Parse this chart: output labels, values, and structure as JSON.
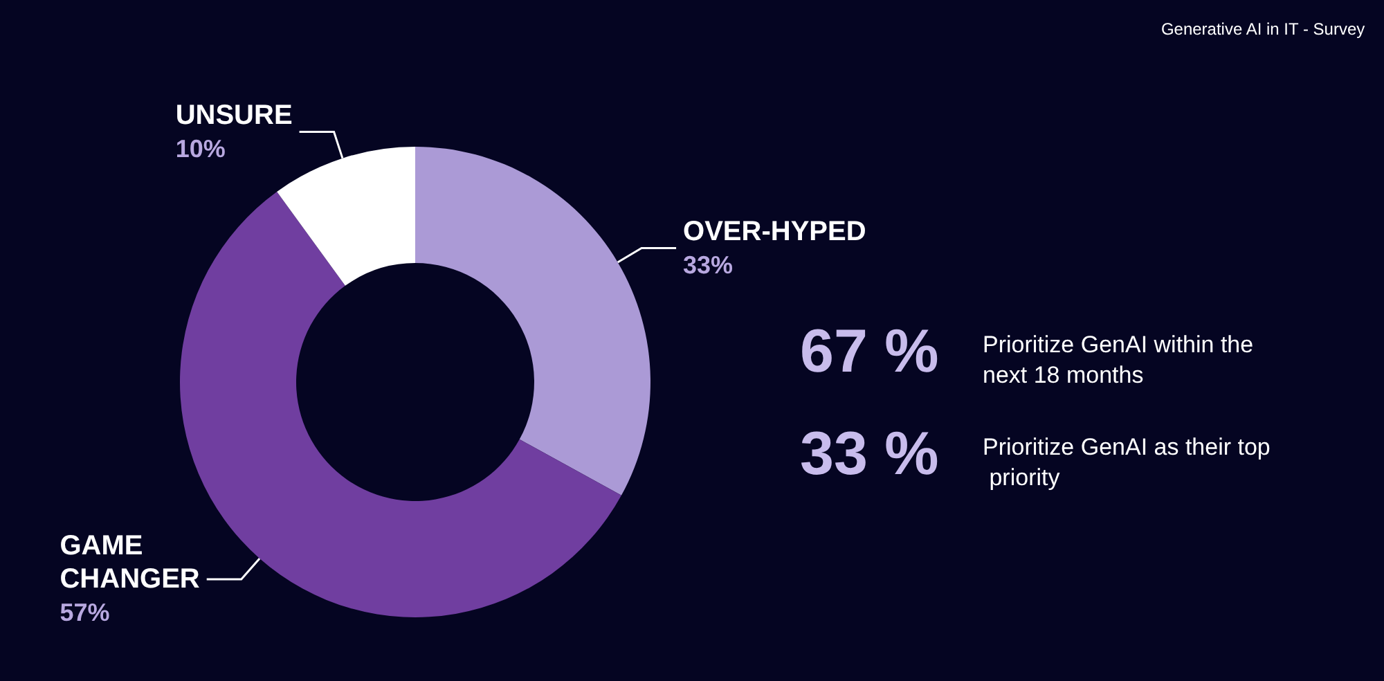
{
  "chart_data": {
    "type": "donut",
    "title": "Generative AI in IT - Survey",
    "categories": [
      "OVER-HYPED",
      "GAME CHANGER",
      "UNSURE"
    ],
    "values": [
      33,
      57,
      10
    ],
    "colors": [
      "#ab9ad6",
      "#703ea0",
      "#ffffff"
    ],
    "value_labels": [
      "33%",
      "57%",
      "10%"
    ],
    "annotations": [
      "67 %",
      "Prioritize GenAI within the next 18 months",
      "33 %",
      "Prioritize GenAI as their top priority"
    ]
  }
}
